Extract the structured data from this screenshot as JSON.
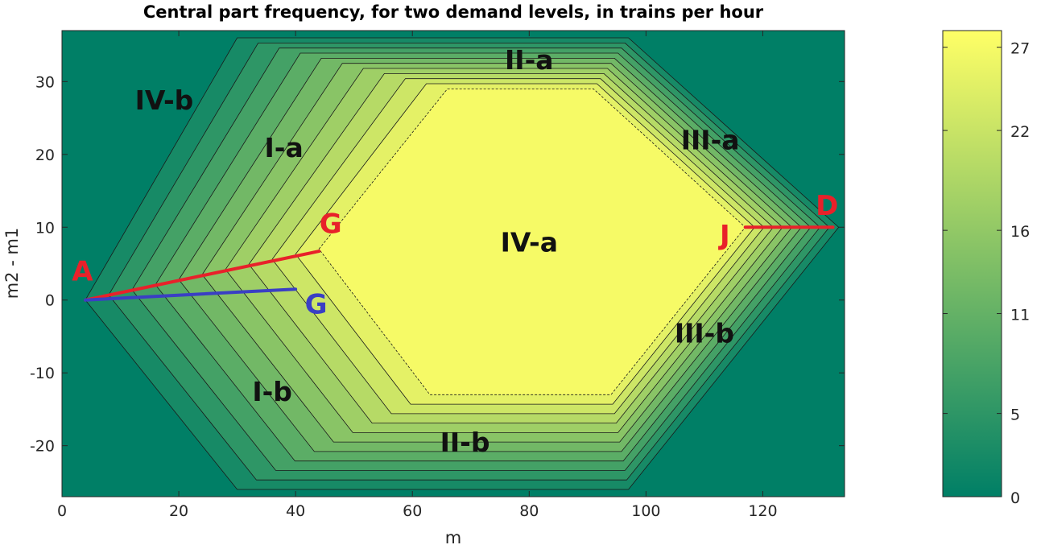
{
  "chart_data": {
    "type": "contourf",
    "title": "Central part frequency, for two demand levels, in trains per hour",
    "xlabel": "m",
    "ylabel": "m2 - m1",
    "xlim": [
      0,
      134
    ],
    "ylim": [
      -27,
      37
    ],
    "xticks": [
      0,
      20,
      40,
      60,
      80,
      100,
      120
    ],
    "yticks": [
      -20,
      -10,
      0,
      10,
      20,
      30
    ],
    "colorbar": {
      "ticks": [
        0,
        5,
        11,
        16,
        22,
        27
      ],
      "range": [
        0,
        28
      ],
      "colormap": [
        "#007f66",
        "#ffff66"
      ]
    },
    "contour_levels": [
      0,
      2.5,
      5,
      7.5,
      10,
      12.5,
      15,
      17.5,
      20,
      22.5,
      25,
      27
    ],
    "hexagon_outer": [
      [
        4,
        0
      ],
      [
        30,
        36
      ],
      [
        97,
        36
      ],
      [
        133,
        10
      ],
      [
        97,
        -26
      ],
      [
        30,
        -26
      ]
    ],
    "hexagon_inner": [
      [
        44,
        7
      ],
      [
        66,
        29
      ],
      [
        91,
        29
      ],
      [
        117,
        10
      ],
      [
        94,
        -13
      ],
      [
        63,
        -13
      ]
    ],
    "region_labels": [
      {
        "text": "IV-b",
        "x": 17.5,
        "y": 27.5
      },
      {
        "text": "I-a",
        "x": 38,
        "y": 21
      },
      {
        "text": "II-a",
        "x": 80,
        "y": 33
      },
      {
        "text": "III-a",
        "x": 111,
        "y": 22
      },
      {
        "text": "IV-a",
        "x": 80,
        "y": 8
      },
      {
        "text": "III-b",
        "x": 110,
        "y": -4.5
      },
      {
        "text": "I-b",
        "x": 36,
        "y": -12.5
      },
      {
        "text": "II-b",
        "x": 69,
        "y": -19.5
      }
    ],
    "series": [
      {
        "color": "#e8212a",
        "points": [
          [
            4,
            0
          ],
          [
            44,
            6.7
          ]
        ]
      },
      {
        "color": "#3a3fc4",
        "points": [
          [
            4,
            0
          ],
          [
            40,
            1.5
          ]
        ]
      },
      {
        "color": "#e8212a",
        "points": [
          [
            117,
            10
          ],
          [
            132,
            10
          ]
        ]
      }
    ],
    "point_labels": [
      {
        "text": "A",
        "x": 3.5,
        "y": 4,
        "color": "#e8212a"
      },
      {
        "text": "G",
        "x": 46,
        "y": 10.5,
        "color": "#e8212a"
      },
      {
        "text": "G",
        "x": 43.5,
        "y": -0.5,
        "color": "#3a3fc4"
      },
      {
        "text": "J",
        "x": 113.5,
        "y": 9,
        "color": "#e8212a"
      },
      {
        "text": "D",
        "x": 131,
        "y": 13,
        "color": "#e8212a"
      }
    ]
  }
}
